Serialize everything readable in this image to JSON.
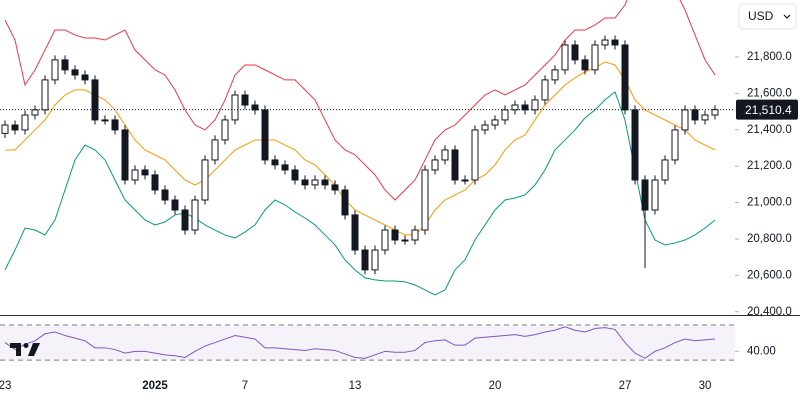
{
  "chart_data": {
    "type": "candlestick",
    "currency": "USD",
    "last_price_label": "21,510.4",
    "open": [
      21380,
      21426,
      21399,
      21481,
      21509,
      21674,
      21784,
      21729,
      21701,
      21674,
      21454,
      21454,
      21399,
      21124,
      21179,
      21152,
      21069,
      21014,
      20959,
      20849,
      21014,
      21234,
      21344,
      21454,
      21591,
      21536,
      21509,
      21234,
      21207,
      21179,
      21124,
      21097,
      21124,
      21097,
      21069,
      20932,
      20739,
      20630,
      20739,
      20849,
      20794,
      20794,
      20849,
      21179,
      21234,
      21289,
      21124,
      21124,
      21399,
      21426,
      21454,
      21509,
      21536,
      21509,
      21564,
      21674,
      21729,
      21866,
      21784,
      21729,
      21866,
      21893,
      21866,
      21509,
      21124,
      20959,
      21124,
      21234,
      21399,
      21509,
      21454,
      21481
    ],
    "high": [
      21451,
      21451,
      21506,
      21534,
      21699,
      21809,
      21809,
      21754,
      21726,
      21699,
      21479,
      21479,
      21424,
      21204,
      21204,
      21177,
      21094,
      21039,
      20984,
      21039,
      21259,
      21369,
      21479,
      21616,
      21616,
      21561,
      21534,
      21259,
      21232,
      21204,
      21149,
      21149,
      21149,
      21122,
      21094,
      20957,
      20764,
      20764,
      20874,
      20874,
      20819,
      20874,
      21204,
      21259,
      21314,
      21314,
      21149,
      21424,
      21451,
      21479,
      21534,
      21561,
      21561,
      21589,
      21699,
      21754,
      21891,
      21891,
      21809,
      21891,
      21918,
      21918,
      21891,
      21534,
      21149,
      21149,
      21259,
      21424,
      21534,
      21534,
      21506,
      21535
    ],
    "low": [
      21355,
      21374,
      21374,
      21456,
      21484,
      21649,
      21704,
      21676,
      21649,
      21429,
      21429,
      21374,
      21099,
      21099,
      21127,
      21044,
      20989,
      20934,
      20824,
      20824,
      20989,
      21209,
      21319,
      21429,
      21511,
      21484,
      21209,
      21182,
      21154,
      21099,
      21072,
      21072,
      21072,
      21044,
      20907,
      20714,
      20605,
      20605,
      20714,
      20769,
      20769,
      20769,
      20824,
      21154,
      21209,
      21099,
      21099,
      21099,
      21374,
      21401,
      21429,
      21484,
      21484,
      21484,
      21539,
      21649,
      21704,
      21759,
      21704,
      21704,
      21841,
      21841,
      21484,
      21099,
      20640,
      20934,
      21099,
      21209,
      21374,
      21429,
      21429,
      21456
    ],
    "close": [
      21426,
      21399,
      21481,
      21509,
      21674,
      21784,
      21729,
      21701,
      21674,
      21454,
      21454,
      21399,
      21124,
      21179,
      21152,
      21069,
      21014,
      20959,
      20849,
      21014,
      21234,
      21344,
      21454,
      21591,
      21536,
      21509,
      21234,
      21207,
      21179,
      21124,
      21097,
      21124,
      21097,
      21069,
      20932,
      20739,
      20630,
      20739,
      20849,
      20794,
      20794,
      20849,
      21179,
      21234,
      21289,
      21124,
      21124,
      21399,
      21426,
      21454,
      21509,
      21536,
      21509,
      21564,
      21674,
      21729,
      21866,
      21784,
      21729,
      21866,
      21893,
      21866,
      21509,
      21124,
      20959,
      21124,
      21234,
      21399,
      21509,
      21454,
      21481,
      21510.4
    ],
    "up_color": "#ffffff",
    "down_color": "#131722",
    "upper_band": {
      "color": "#f23645",
      "values": [
        22003,
        21893,
        21646,
        21729,
        21838,
        21948,
        21948,
        21921,
        21904,
        21904,
        21893,
        21921,
        21948,
        21838,
        21784,
        21729,
        21701,
        21619,
        21509,
        21426,
        21399,
        21454,
        21564,
        21701,
        21756,
        21756,
        21729,
        21701,
        21674,
        21674,
        21619,
        21564,
        21454,
        21344,
        21289,
        21262,
        21207,
        21152,
        21069,
        21014,
        21069,
        21124,
        21234,
        21344,
        21399,
        21426,
        21481,
        21536,
        21591,
        21619,
        21591,
        21619,
        21646,
        21701,
        21756,
        21811,
        21893,
        21948,
        21948,
        21976,
        22014,
        22014,
        22086,
        22223,
        22333,
        22333,
        22278,
        22168,
        22058,
        21921,
        21784,
        21701
      ]
    },
    "middle_band": {
      "color": "#ff9800",
      "values": [
        21289,
        21289,
        21344,
        21399,
        21454,
        21536,
        21591,
        21619,
        21619,
        21591,
        21564,
        21509,
        21426,
        21344,
        21289,
        21261,
        21234,
        21179,
        21124,
        21097,
        21124,
        21179,
        21234,
        21289,
        21316,
        21344,
        21344,
        21344,
        21316,
        21289,
        21234,
        21207,
        21152,
        21097,
        21014,
        20959,
        20932,
        20904,
        20877,
        20849,
        20822,
        20822,
        20877,
        20959,
        21014,
        21042,
        21069,
        21124,
        21152,
        21207,
        21289,
        21344,
        21371,
        21454,
        21536,
        21591,
        21646,
        21685,
        21718,
        21740,
        21773,
        21756,
        21674,
        21564,
        21509,
        21481,
        21454,
        21426,
        21399,
        21344,
        21316,
        21289
      ]
    },
    "lower_band": {
      "color": "#089981",
      "values": [
        20630,
        20739,
        20860,
        20849,
        20822,
        20904,
        21069,
        21234,
        21316,
        21289,
        21234,
        21124,
        21014,
        20959,
        20904,
        20877,
        20893,
        20932,
        20943,
        20915,
        20877,
        20849,
        20822,
        20805,
        20838,
        20877,
        20959,
        21014,
        20987,
        20948,
        20915,
        20877,
        20822,
        20767,
        20685,
        20630,
        20586,
        20575,
        20569,
        20569,
        20564,
        20547,
        20520,
        20492,
        20520,
        20630,
        20685,
        20794,
        20877,
        20959,
        21014,
        21025,
        21042,
        21097,
        21179,
        21289,
        21344,
        21399,
        21465,
        21509,
        21564,
        21608,
        21454,
        21179,
        20904,
        20794,
        20767,
        20778,
        20794,
        20822,
        20860,
        20904
      ]
    },
    "ylim": [
      20382,
      22113
    ],
    "yticks": [
      {
        "value": 20400,
        "label": "20,400.0"
      },
      {
        "value": 20600,
        "label": "20,600.0"
      },
      {
        "value": 20800,
        "label": "20,800.0"
      },
      {
        "value": 21000,
        "label": "21,000.0"
      },
      {
        "value": 21200,
        "label": "21,200.0"
      },
      {
        "value": 21400,
        "label": "21,400.0"
      },
      {
        "value": 21600,
        "label": "21,600.0"
      },
      {
        "value": 21800,
        "label": "21,800.0"
      }
    ],
    "xticks": [
      {
        "value": 0,
        "label": "23"
      },
      {
        "value": 15,
        "label": "2025"
      },
      {
        "value": 24,
        "label": "7"
      },
      {
        "value": 35,
        "label": "13"
      },
      {
        "value": 49,
        "label": "20"
      },
      {
        "value": 62,
        "label": "27"
      },
      {
        "value": 70,
        "label": "30"
      }
    ],
    "rsi": {
      "color": "#7e57c2",
      "ylim": [
        13,
        78
      ],
      "levels": [
        70,
        30
      ],
      "yticks": [
        {
          "value": 40,
          "label": "40.00"
        }
      ],
      "values": [
        50,
        42,
        48,
        52,
        60,
        62,
        58,
        55,
        52,
        44,
        44,
        42,
        38,
        40,
        40,
        38,
        36,
        35,
        33,
        40,
        46,
        50,
        54,
        58,
        56,
        54,
        44,
        44,
        43,
        42,
        41,
        43,
        42,
        41,
        37,
        33,
        32,
        36,
        40,
        39,
        39,
        41,
        50,
        52,
        53,
        47,
        47,
        55,
        56,
        57,
        58,
        59,
        57,
        59,
        62,
        64,
        68,
        64,
        62,
        66,
        67,
        65,
        50,
        38,
        32,
        40,
        44,
        50,
        54,
        52,
        53,
        54
      ]
    }
  }
}
